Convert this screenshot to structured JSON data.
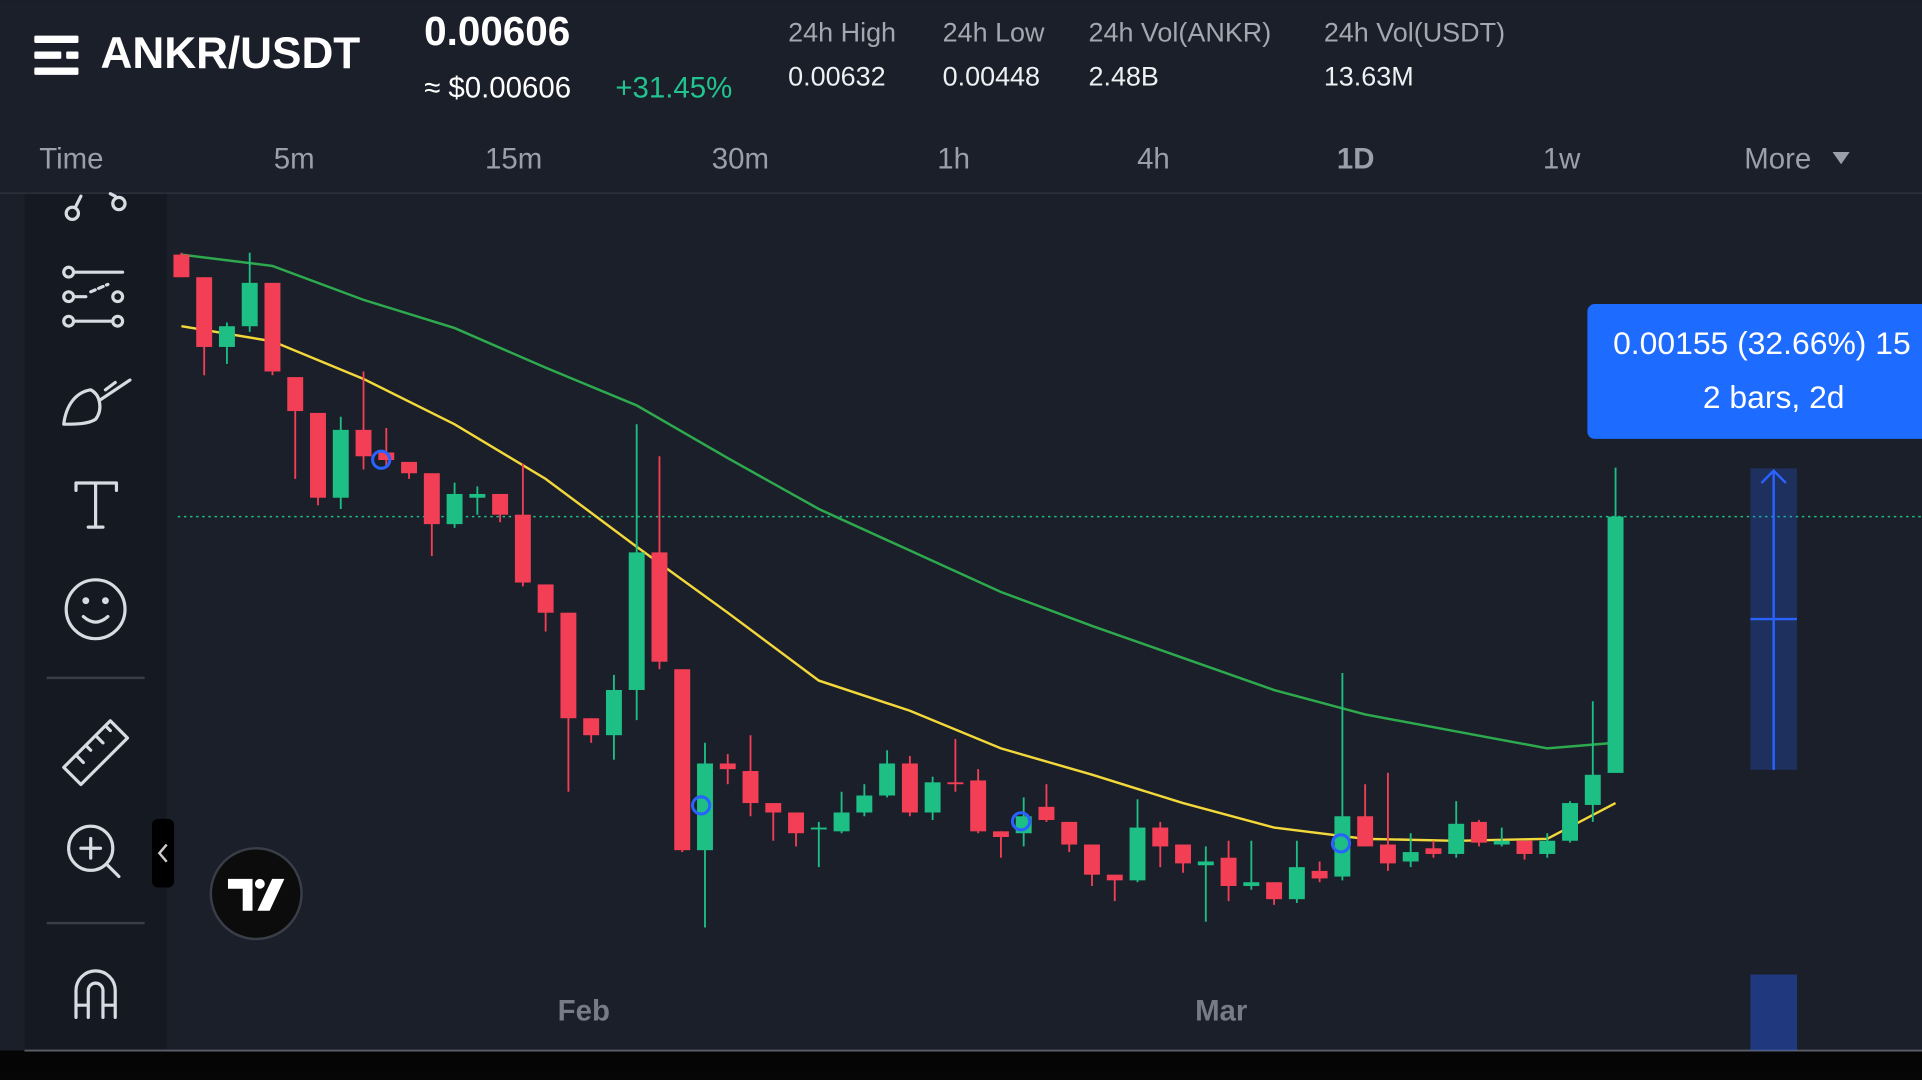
{
  "header": {
    "pair": "ANKR/USDT",
    "price": 0.00606,
    "price_usd": "≈ $0.00606",
    "change": "+31.45%",
    "stats": [
      {
        "label": "24h High",
        "value": "0.00632"
      },
      {
        "label": "24h Low",
        "value": "0.00448"
      },
      {
        "label": "24h Vol(ANKR)",
        "value": "2.48B"
      },
      {
        "label": "24h Vol(USDT)",
        "value": "13.63M"
      }
    ]
  },
  "intervals": [
    "Time",
    "5m",
    "15m",
    "30m",
    "1h",
    "4h",
    "1D",
    "1w",
    "More"
  ],
  "active_interval": 6,
  "measure": {
    "line1": "0.00155 (32.66%) 15",
    "line2": "2 bars, 2d"
  },
  "chart_data": {
    "type": "candlestick",
    "categories": [
      null,
      null,
      null,
      null,
      null,
      null,
      null,
      null,
      null,
      null,
      null,
      null,
      null,
      null,
      null,
      null,
      null,
      null,
      "Feb",
      null,
      null,
      null,
      null,
      null,
      null,
      null,
      null,
      null,
      null,
      null,
      null,
      null,
      null,
      null,
      null,
      null,
      null,
      null,
      null,
      null,
      null,
      null,
      null,
      null,
      null,
      null,
      "Mar",
      null,
      null,
      null,
      null,
      null,
      null,
      null,
      null,
      null,
      null,
      null,
      null,
      null,
      null,
      null,
      null,
      null
    ],
    "open": [
      0.00745,
      0.00733,
      0.00696,
      0.00707,
      0.0073,
      0.0068,
      0.00661,
      0.00616,
      0.00652,
      0.0064,
      0.00635,
      0.00629,
      0.00602,
      0.00616,
      0.00618,
      0.00607,
      0.0057,
      0.00555,
      0.00499,
      0.0049,
      0.00514,
      0.00587,
      0.00525,
      0.00429,
      0.00475,
      0.00471,
      0.00454,
      0.00449,
      0.0044,
      0.00439,
      0.00449,
      0.00458,
      0.00475,
      0.00449,
      0.00465,
      0.00466,
      0.00439,
      0.00438,
      0.00452,
      0.00444,
      0.00432,
      0.00416,
      0.00413,
      0.00441,
      0.00432,
      0.00421,
      0.00425,
      0.0041,
      0.00412,
      0.00403,
      0.00418,
      0.00415,
      0.00447,
      0.00432,
      0.00423,
      0.0043,
      0.00427,
      0.00444,
      0.00432,
      0.00434,
      0.00427,
      0.00434,
      0.00453,
      0.0047
    ],
    "high": [
      0.00746,
      0.00733,
      0.00709,
      0.00746,
      0.0073,
      0.0068,
      0.00661,
      0.00659,
      0.00683,
      0.00653,
      0.00635,
      0.00629,
      0.00624,
      0.00622,
      0.00618,
      0.00634,
      0.0057,
      0.00555,
      0.00499,
      0.00522,
      0.00655,
      0.00638,
      0.00525,
      0.00486,
      0.0048,
      0.0049,
      0.00454,
      0.00449,
      0.00444,
      0.0046,
      0.00464,
      0.00482,
      0.00479,
      0.00468,
      0.00488,
      0.00472,
      0.00439,
      0.00457,
      0.00464,
      0.00444,
      0.00432,
      0.00416,
      0.00456,
      0.00444,
      0.00432,
      0.00431,
      0.00434,
      0.00434,
      0.00412,
      0.00434,
      0.00423,
      0.00523,
      0.00464,
      0.0047,
      0.00438,
      0.00434,
      0.00455,
      0.00445,
      0.00441,
      0.00434,
      0.00438,
      0.00455,
      0.00508,
      0.00632
    ],
    "low": [
      0.00733,
      0.00681,
      0.00687,
      0.00704,
      0.00681,
      0.00626,
      0.00612,
      0.0061,
      0.00631,
      0.00633,
      0.00626,
      0.00585,
      0.006,
      0.00607,
      0.00603,
      0.00569,
      0.00545,
      0.0046,
      0.00486,
      0.00477,
      0.00498,
      0.00525,
      0.00428,
      0.00388,
      0.00464,
      0.00447,
      0.00434,
      0.00431,
      0.0042,
      0.00438,
      0.00447,
      0.00457,
      0.00447,
      0.00445,
      0.0046,
      0.00438,
      0.00425,
      0.00431,
      0.00444,
      0.00428,
      0.0041,
      0.00402,
      0.00412,
      0.0042,
      0.00417,
      0.00391,
      0.00402,
      0.00408,
      0.004,
      0.00401,
      0.00412,
      0.00413,
      0.00431,
      0.00418,
      0.0042,
      0.00425,
      0.00425,
      0.00431,
      0.00431,
      0.00424,
      0.00425,
      0.00433,
      0.00444,
      0.0047
    ],
    "close": [
      0.00733,
      0.00696,
      0.00707,
      0.0073,
      0.00683,
      0.00662,
      0.00616,
      0.00652,
      0.00638,
      0.00636,
      0.00629,
      0.00602,
      0.00618,
      0.00618,
      0.00607,
      0.00571,
      0.00555,
      0.00499,
      0.0049,
      0.00514,
      0.00587,
      0.00529,
      0.00429,
      0.00475,
      0.00472,
      0.00454,
      0.00449,
      0.00438,
      0.00441,
      0.00449,
      0.00458,
      0.00475,
      0.00449,
      0.00465,
      0.00464,
      0.00439,
      0.00436,
      0.00447,
      0.00445,
      0.00432,
      0.00416,
      0.00413,
      0.00441,
      0.00431,
      0.00422,
      0.00423,
      0.0041,
      0.00412,
      0.00403,
      0.0042,
      0.00414,
      0.00447,
      0.00431,
      0.00422,
      0.00428,
      0.00427,
      0.00443,
      0.00433,
      0.00434,
      0.00427,
      0.00434,
      0.00454,
      0.00469,
      0.00606
    ],
    "up_color": "#1dbf84",
    "down_color": "#f23f55",
    "ylim": [
      0.00324,
      0.00776
    ],
    "series": [
      {
        "color": "#2eaa4e",
        "x": [
          0,
          4,
          8,
          12,
          16,
          20,
          24,
          28,
          32,
          36,
          40,
          44,
          48,
          52,
          56,
          60,
          63
        ],
        "values": [
          0.00745,
          0.00739,
          0.00721,
          0.00706,
          0.00685,
          0.00665,
          0.00637,
          0.0061,
          0.00588,
          0.00566,
          0.00548,
          0.00531,
          0.00514,
          0.00501,
          0.00492,
          0.00483,
          0.00486
        ]
      },
      {
        "color": "#f2d83a",
        "x": [
          0,
          4,
          8,
          12,
          16,
          20,
          24,
          28,
          32,
          36,
          40,
          44,
          48,
          52,
          56,
          60,
          63
        ],
        "values": [
          0.00707,
          0.00699,
          0.00679,
          0.00655,
          0.00626,
          0.0059,
          0.00555,
          0.00519,
          0.00503,
          0.00483,
          0.00469,
          0.00454,
          0.00441,
          0.00435,
          0.00434,
          0.00435,
          0.00454
        ]
      }
    ]
  }
}
